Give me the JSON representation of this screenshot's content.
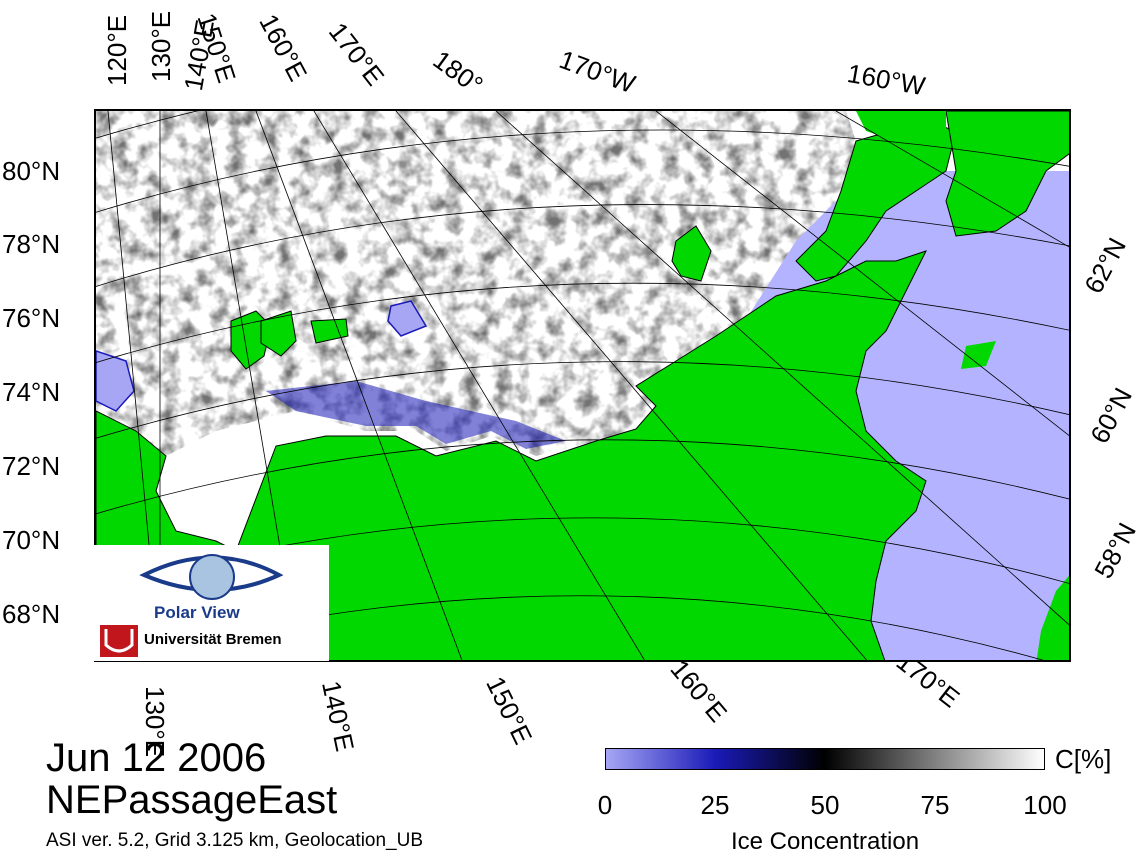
{
  "title": {
    "date": "Jun 12 2006",
    "region": "NEPassageEast"
  },
  "footer": "ASI ver. 5.2,  Grid 3.125 km, Geolocation_UB",
  "colorbar": {
    "unit": "C[%]",
    "label": "Ice Concentration",
    "ticks": [
      "0",
      "25",
      "50",
      "75",
      "100"
    ],
    "stops": [
      "#a6a6f5",
      "#1a1ab8",
      "#000000",
      "#808080",
      "#ffffff"
    ]
  },
  "logo": {
    "name": "Polar View",
    "institution": "Universität Bremen"
  },
  "graticule_labels": {
    "top": [
      "120°E",
      "130°E",
      "140°E",
      "150°E",
      "160°E",
      "170°E",
      "180°",
      "170°W",
      "160°W"
    ],
    "left": [
      "80°N",
      "78°N",
      "76°N",
      "74°N",
      "72°N",
      "70°N",
      "68°N"
    ],
    "right": [
      "62°N",
      "60°N",
      "58°N"
    ],
    "bottom": [
      "130°E",
      "140°E",
      "150°E",
      "160°E",
      "170°E"
    ]
  },
  "colors": {
    "land": "#00d800",
    "open_water": "#b3b3ff",
    "ice": "#ffffff",
    "frame": "#000000"
  }
}
